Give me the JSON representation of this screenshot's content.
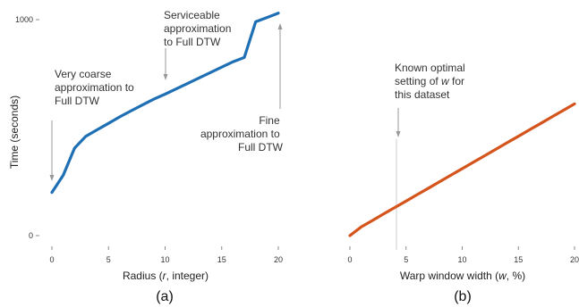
{
  "chart_data": [
    {
      "type": "line",
      "panel_label": "(a)",
      "xlabel": "Radius (r, integer)",
      "ylabel": "Time (seconds)",
      "xlim": [
        0,
        20
      ],
      "ylim": [
        0,
        1000
      ],
      "xticks": [
        "0",
        "5",
        "10",
        "15",
        "20"
      ],
      "yticks": [
        "0",
        "1000"
      ],
      "grid": false,
      "series": [
        {
          "color": "#1f6fb5",
          "x": [
            0,
            1,
            2,
            3,
            4,
            5,
            6,
            7,
            8,
            9,
            10,
            11,
            12,
            13,
            14,
            15,
            16,
            17,
            18,
            19,
            20
          ],
          "y": [
            200,
            280,
            405,
            460,
            490,
            520,
            550,
            578,
            605,
            632,
            655,
            680,
            705,
            730,
            755,
            780,
            805,
            825,
            990,
            1010,
            1030
          ]
        }
      ],
      "annotations": [
        {
          "lines": [
            "Very coarse",
            "approximation to",
            "Full DTW"
          ],
          "x": 0,
          "y": 240
        },
        {
          "lines": [
            "Serviceable",
            "approximation",
            "to Full DTW"
          ],
          "x": 10,
          "y": 720
        },
        {
          "lines": [
            "Fine",
            "approximation to",
            "Full DTW"
          ],
          "x": 20,
          "y": 990
        }
      ]
    },
    {
      "type": "line",
      "panel_label": "(b)",
      "xlabel": "Warp window width (w, %)",
      "ylabel": "",
      "xlim": [
        0,
        20
      ],
      "ylim": [
        0,
        1000
      ],
      "xticks": [
        "0",
        "5",
        "10",
        "15",
        "20"
      ],
      "grid": false,
      "series": [
        {
          "color": "#d4541c",
          "x": [
            0,
            1,
            2,
            3,
            4,
            5,
            6,
            7,
            8,
            9,
            10,
            11,
            12,
            13,
            14,
            15,
            16,
            17,
            18,
            19,
            20
          ],
          "y": [
            0,
            40,
            70,
            100,
            130,
            160,
            190,
            220,
            250,
            280,
            310,
            340,
            370,
            400,
            430,
            460,
            490,
            520,
            550,
            580,
            610
          ]
        }
      ],
      "annotations": [
        {
          "lines": [
            "Known optimal",
            "setting of w for",
            "this dataset"
          ],
          "x": 4.3,
          "w_italic": true
        }
      ]
    }
  ]
}
